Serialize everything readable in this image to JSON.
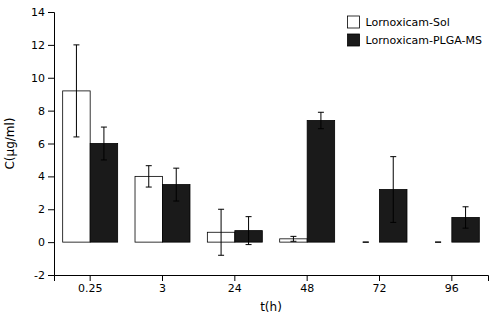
{
  "chart_data": {
    "type": "bar",
    "categories": [
      "0.25",
      "3",
      "24",
      "48",
      "72",
      "96"
    ],
    "series": [
      {
        "name": "Lornoxicam-Sol",
        "color": "#ffffff",
        "values": [
          9.2,
          4.0,
          0.6,
          0.2,
          0.0,
          0.0
        ],
        "errors": [
          2.8,
          0.65,
          1.4,
          0.15,
          0.0,
          0.0
        ]
      },
      {
        "name": "Lornoxicam-PLGA-MS",
        "color": "#1a1a1a",
        "values": [
          6.0,
          3.5,
          0.7,
          7.4,
          3.2,
          1.5
        ],
        "errors": [
          1.0,
          1.0,
          0.85,
          0.5,
          2.0,
          0.65
        ]
      }
    ],
    "xlabel": "t(h)",
    "ylabel": "C(μg/ml)",
    "ylim": [
      -2,
      14
    ],
    "yticks": [
      -2,
      0,
      2,
      4,
      6,
      8,
      10,
      12,
      14
    ],
    "grid": false,
    "legend": "upper right"
  }
}
